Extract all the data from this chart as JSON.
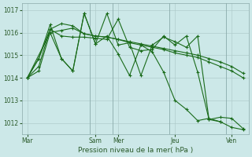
{
  "bg_color": "#cce8e8",
  "grid_color": "#b0cccc",
  "line_color": "#1a6b1a",
  "marker_color": "#1a6b1a",
  "xlabel": "Pression niveau de la mer( hPa )",
  "ylim": [
    1011.5,
    1017.3
  ],
  "yticks": [
    1012,
    1013,
    1014,
    1015,
    1016,
    1017
  ],
  "xtick_labels": [
    "Mar",
    "Sam",
    "Mer",
    "Jeu",
    "Ven"
  ],
  "xtick_positions": [
    0,
    6,
    8,
    13,
    18
  ],
  "vlines": [
    5.5,
    7.5,
    12.5,
    17.5
  ],
  "xlim": [
    -0.5,
    19.5
  ],
  "series": [
    {
      "x": [
        0,
        1,
        2,
        3,
        4,
        5,
        6,
        7,
        8,
        9,
        10,
        11,
        12,
        13,
        14,
        15,
        16,
        17,
        18,
        19
      ],
      "y": [
        1014.0,
        1014.3,
        1016.0,
        1016.1,
        1016.2,
        1015.95,
        1015.85,
        1015.8,
        1015.7,
        1015.6,
        1015.5,
        1015.4,
        1015.3,
        1015.2,
        1015.1,
        1015.0,
        1014.85,
        1014.7,
        1014.5,
        1014.2
      ]
    },
    {
      "x": [
        0,
        1,
        2,
        3,
        4,
        5,
        6,
        7,
        8,
        9,
        10,
        11,
        12,
        13,
        14,
        15,
        16,
        17,
        18,
        19
      ],
      "y": [
        1014.0,
        1014.5,
        1016.15,
        1016.4,
        1016.3,
        1015.95,
        1015.85,
        1015.8,
        1015.7,
        1015.55,
        1015.45,
        1015.35,
        1015.25,
        1015.1,
        1015.0,
        1014.9,
        1014.7,
        1014.5,
        1014.3,
        1014.0
      ]
    },
    {
      "x": [
        0,
        2,
        3,
        4,
        5,
        6,
        7,
        8,
        9,
        10,
        11,
        12,
        13,
        14,
        15,
        16,
        17,
        18,
        19
      ],
      "y": [
        1014.0,
        1016.0,
        1014.85,
        1014.3,
        1016.85,
        1015.5,
        1015.85,
        1015.05,
        1014.1,
        1015.45,
        1015.15,
        1014.25,
        1013.0,
        1012.6,
        1012.1,
        1012.2,
        1012.05,
        1011.8,
        1011.7
      ]
    },
    {
      "x": [
        0,
        1,
        2,
        3,
        4,
        5,
        6,
        7,
        8,
        9,
        10,
        11,
        12,
        13,
        14,
        15,
        16,
        17,
        18,
        19
      ],
      "y": [
        1014.0,
        1014.85,
        1016.15,
        1015.85,
        1015.8,
        1015.8,
        1015.75,
        1015.7,
        1016.6,
        1015.35,
        1015.2,
        1015.25,
        1015.85,
        1015.45,
        1015.85,
        1014.25,
        1012.15,
        1012.25,
        1012.2,
        1011.75
      ]
    },
    {
      "x": [
        0,
        1,
        2,
        3,
        4,
        5,
        6,
        7,
        8,
        9,
        10,
        11,
        12,
        13,
        14,
        15,
        16,
        17
      ],
      "y": [
        1014.0,
        1014.85,
        1016.35,
        1014.85,
        1014.3,
        1016.85,
        1015.5,
        1016.85,
        1015.45,
        1015.55,
        1014.1,
        1015.45,
        1015.8,
        1015.6,
        1015.35,
        1015.85,
        1012.15,
        1012.05
      ]
    }
  ]
}
